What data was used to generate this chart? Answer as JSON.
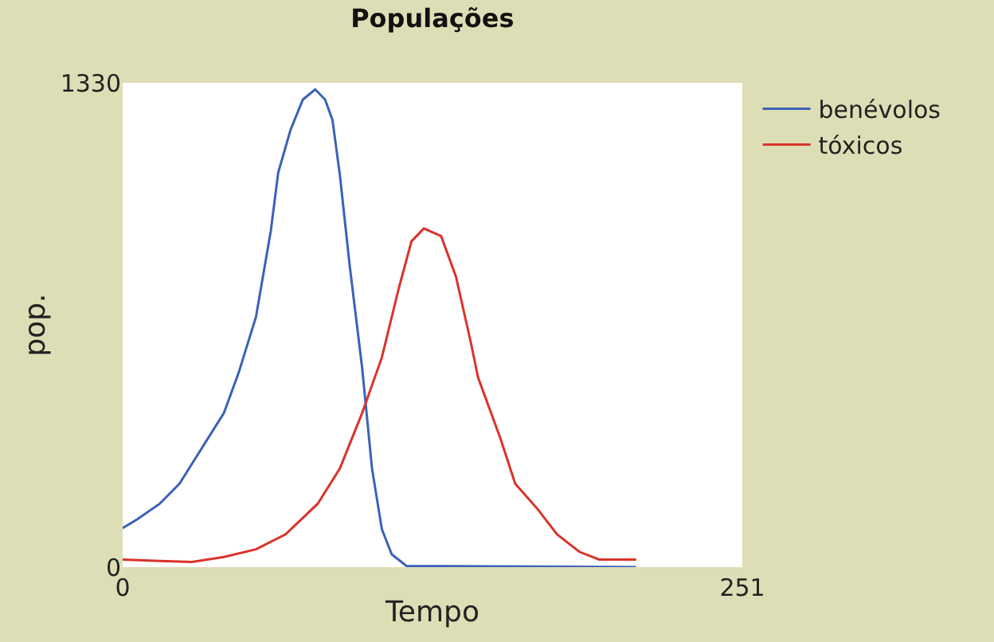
{
  "chart_data": {
    "type": "line",
    "title": "Populações",
    "xlabel": "Tempo",
    "ylabel": "pop.",
    "xlim": [
      0,
      251
    ],
    "ylim": [
      0,
      1330
    ],
    "xticks": [
      0,
      251
    ],
    "yticks": [
      0,
      1330
    ],
    "legend": "top right",
    "line_style": "solid",
    "series": [
      {
        "name": "benévolos",
        "color": "#3a62b8",
        "x": [
          0,
          6,
          15,
          23,
          32,
          41,
          47,
          54,
          60,
          63,
          68,
          73,
          78,
          82,
          85,
          88,
          92,
          97,
          101,
          105,
          109,
          115,
          208
        ],
        "values": [
          107,
          132,
          174,
          229,
          326,
          423,
          534,
          687,
          923,
          1083,
          1201,
          1284,
          1312,
          1284,
          1228,
          1076,
          826,
          548,
          271,
          104,
          35,
          3,
          0
        ]
      },
      {
        "name": "tóxicos",
        "color": "#d9332b",
        "x": [
          0,
          15,
          28,
          41,
          54,
          66,
          79,
          88,
          97,
          105,
          112,
          117,
          122,
          129,
          135,
          141,
          144,
          153,
          159,
          168,
          176,
          185,
          193,
          208
        ],
        "values": [
          21,
          17,
          14,
          28,
          49,
          90,
          174,
          271,
          423,
          576,
          770,
          895,
          930,
          909,
          798,
          618,
          520,
          354,
          229,
          160,
          90,
          42,
          21,
          21
        ]
      }
    ]
  }
}
